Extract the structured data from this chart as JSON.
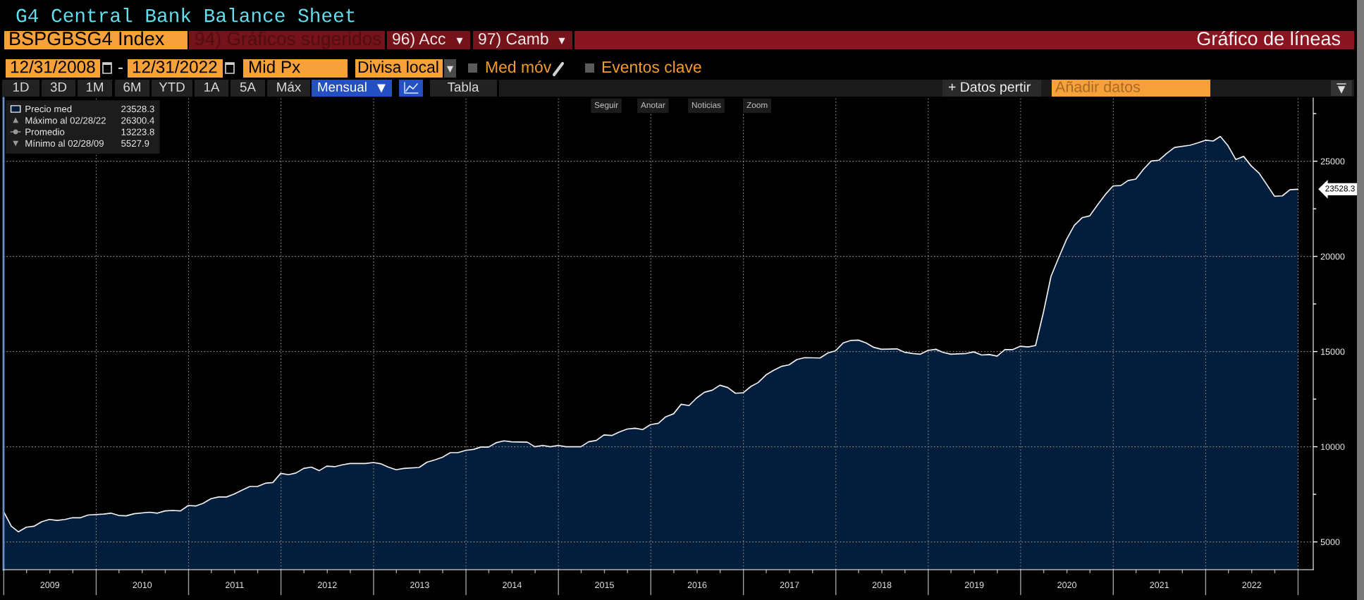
{
  "chart_data": {
    "type": "area",
    "title": "G4 Central Bank Balance Sheet",
    "x": [
      "2008-12-31",
      "2009-01-31",
      "2009-02-28",
      "2009-03-31",
      "2009-04-30",
      "2009-05-31",
      "2009-06-30",
      "2009-07-31",
      "2009-08-31",
      "2009-09-30",
      "2009-10-31",
      "2009-11-30",
      "2010-01-31",
      "2010-02-28",
      "2010-03-31",
      "2010-04-30",
      "2010-05-31",
      "2010-07-31",
      "2010-08-31",
      "2010-09-30",
      "2010-10-31",
      "2010-11-30",
      "2010-12-31",
      "2011-01-31",
      "2011-02-28",
      "2011-03-31",
      "2011-04-30",
      "2011-05-31",
      "2011-06-30",
      "2011-07-31",
      "2011-08-31",
      "2011-09-30",
      "2011-10-31",
      "2011-11-30",
      "2011-12-31",
      "2012-01-31",
      "2012-02-29",
      "2012-03-31",
      "2012-04-30",
      "2012-05-31",
      "2012-06-30",
      "2012-07-31",
      "2012-08-31",
      "2012-09-30",
      "2012-11-30",
      "2012-12-31",
      "2013-01-31",
      "2013-02-28",
      "2013-03-31",
      "2013-04-30",
      "2013-06-30",
      "2013-07-31",
      "2013-08-31",
      "2013-09-30",
      "2013-10-31",
      "2013-11-30",
      "2013-12-31",
      "2014-01-31",
      "2014-02-28",
      "2014-03-31",
      "2014-04-30",
      "2014-05-31",
      "2014-06-30",
      "2014-08-31",
      "2014-09-30",
      "2014-10-31",
      "2014-11-30",
      "2014-12-31",
      "2015-01-31",
      "2015-03-31",
      "2015-04-30",
      "2015-05-31",
      "2015-06-30",
      "2015-07-31",
      "2015-08-31",
      "2015-09-30",
      "2015-10-31",
      "2015-11-30",
      "2015-12-31",
      "2016-01-31",
      "2016-02-29",
      "2016-03-31",
      "2016-04-30",
      "2016-05-31",
      "2016-06-30",
      "2016-07-31",
      "2016-08-31",
      "2016-09-30",
      "2016-10-31",
      "2016-11-30",
      "2016-12-31",
      "2017-01-31",
      "2017-02-28",
      "2017-03-31",
      "2017-04-30",
      "2017-05-31",
      "2017-06-30",
      "2017-07-31",
      "2017-08-31",
      "2017-10-31",
      "2017-11-30",
      "2017-12-31",
      "2018-01-31",
      "2018-02-28",
      "2018-03-31",
      "2018-04-30",
      "2018-05-31",
      "2018-06-30",
      "2018-08-31",
      "2018-09-30",
      "2018-10-31",
      "2018-11-30",
      "2018-12-31",
      "2019-01-31",
      "2019-02-28",
      "2019-03-31",
      "2019-05-31",
      "2019-06-30",
      "2019-07-31",
      "2019-08-31",
      "2019-09-30",
      "2019-10-31",
      "2019-11-30",
      "2019-12-31",
      "2020-01-31",
      "2020-02-29",
      "2020-03-31",
      "2020-04-30",
      "2020-05-31",
      "2020-06-30",
      "2020-07-31",
      "2020-08-31",
      "2020-09-30",
      "2020-10-31",
      "2020-11-30",
      "2020-12-31",
      "2021-01-31",
      "2021-02-28",
      "2021-03-31",
      "2021-04-30",
      "2021-05-31",
      "2021-06-30",
      "2021-07-31",
      "2021-08-31",
      "2021-10-31",
      "2021-11-30",
      "2021-12-31",
      "2022-01-31",
      "2022-02-28",
      "2022-03-31",
      "2022-04-30",
      "2022-05-31",
      "2022-06-30",
      "2022-07-31",
      "2022-08-31",
      "2022-09-30",
      "2022-10-31",
      "2022-11-30",
      "2022-12-31"
    ],
    "series": [
      {
        "name": "Precio med",
        "color": "#031d3c",
        "values": [
          6600,
          5820,
          5527.9,
          5770,
          5820,
          6060,
          6180,
          6130,
          6180,
          6270,
          6270,
          6410,
          6460,
          6510,
          6390,
          6370,
          6480,
          6560,
          6510,
          6630,
          6650,
          6630,
          6910,
          6890,
          7030,
          7270,
          7360,
          7360,
          7510,
          7720,
          7910,
          7910,
          8080,
          8120,
          8600,
          8530,
          8620,
          8860,
          8930,
          8740,
          8980,
          8950,
          9050,
          9120,
          9120,
          9170,
          9100,
          8930,
          8790,
          8860,
          8910,
          9190,
          9310,
          9450,
          9690,
          9690,
          9810,
          9860,
          9980,
          9980,
          10210,
          10310,
          10260,
          10240,
          10000,
          10070,
          10000,
          10070,
          10000,
          10000,
          10260,
          10330,
          10620,
          10590,
          10780,
          10930,
          10970,
          10900,
          11160,
          11230,
          11570,
          11730,
          12230,
          12160,
          12560,
          12860,
          12970,
          13230,
          13110,
          12810,
          12830,
          13170,
          13370,
          13770,
          14010,
          14220,
          14300,
          14580,
          14680,
          14660,
          14920,
          15040,
          15460,
          15580,
          15600,
          15460,
          15220,
          15120,
          15140,
          14960,
          14900,
          14860,
          15060,
          15120,
          14960,
          14860,
          14900,
          14980,
          14820,
          14840,
          14760,
          15100,
          15100,
          15280,
          15240,
          15320,
          17050,
          18950,
          19950,
          20880,
          21630,
          22030,
          22130,
          22710,
          23240,
          23700,
          23720,
          23980,
          24060,
          24570,
          25010,
          25050,
          25410,
          25720,
          25840,
          25960,
          26100,
          26060,
          26300.4,
          25800,
          25090,
          25250,
          24750,
          24370,
          23760,
          23160,
          23180,
          23500,
          23528.3
        ]
      }
    ],
    "xlim": [
      "2008-12-31",
      "2023-03-02"
    ],
    "xticks": [
      {
        "value": "2009-01-01",
        "label": null
      },
      {
        "value": "2009-04-01",
        "label": null
      },
      {
        "value": "2009-07-02",
        "label": "2009"
      },
      {
        "value": "2009-10-01",
        "label": null
      },
      {
        "value": "2010-01-01",
        "label": null
      },
      {
        "value": "2010-04-01",
        "label": null
      },
      {
        "value": "2010-07-02",
        "label": "2010"
      },
      {
        "value": "2010-10-01",
        "label": null
      },
      {
        "value": "2011-01-01",
        "label": null
      },
      {
        "value": "2011-04-01",
        "label": null
      },
      {
        "value": "2011-07-02",
        "label": "2011"
      },
      {
        "value": "2011-10-01",
        "label": null
      },
      {
        "value": "2012-01-01",
        "label": null
      },
      {
        "value": "2012-04-01",
        "label": null
      },
      {
        "value": "2012-07-02",
        "label": "2012"
      },
      {
        "value": "2012-10-01",
        "label": null
      },
      {
        "value": "2013-01-01",
        "label": null
      },
      {
        "value": "2013-04-01",
        "label": null
      },
      {
        "value": "2013-07-02",
        "label": "2013"
      },
      {
        "value": "2013-10-01",
        "label": null
      },
      {
        "value": "2014-01-01",
        "label": null
      },
      {
        "value": "2014-04-01",
        "label": null
      },
      {
        "value": "2014-07-02",
        "label": "2014"
      },
      {
        "value": "2014-10-01",
        "label": null
      },
      {
        "value": "2015-01-01",
        "label": null
      },
      {
        "value": "2015-04-01",
        "label": null
      },
      {
        "value": "2015-07-02",
        "label": "2015"
      },
      {
        "value": "2015-10-01",
        "label": null
      },
      {
        "value": "2016-01-01",
        "label": null
      },
      {
        "value": "2016-04-01",
        "label": null
      },
      {
        "value": "2016-07-02",
        "label": "2016"
      },
      {
        "value": "2016-10-01",
        "label": null
      },
      {
        "value": "2017-01-01",
        "label": null
      },
      {
        "value": "2017-04-01",
        "label": null
      },
      {
        "value": "2017-07-02",
        "label": "2017"
      },
      {
        "value": "2017-10-01",
        "label": null
      },
      {
        "value": "2018-01-01",
        "label": null
      },
      {
        "value": "2018-04-01",
        "label": null
      },
      {
        "value": "2018-07-02",
        "label": "2018"
      },
      {
        "value": "2018-10-01",
        "label": null
      },
      {
        "value": "2019-01-01",
        "label": null
      },
      {
        "value": "2019-04-01",
        "label": null
      },
      {
        "value": "2019-07-02",
        "label": "2019"
      },
      {
        "value": "2019-10-01",
        "label": null
      },
      {
        "value": "2020-01-01",
        "label": null
      },
      {
        "value": "2020-04-01",
        "label": null
      },
      {
        "value": "2020-07-02",
        "label": "2020"
      },
      {
        "value": "2020-10-01",
        "label": null
      },
      {
        "value": "2021-01-01",
        "label": null
      },
      {
        "value": "2021-04-01",
        "label": null
      },
      {
        "value": "2021-07-02",
        "label": "2021"
      },
      {
        "value": "2021-10-01",
        "label": null
      },
      {
        "value": "2022-01-01",
        "label": null
      },
      {
        "value": "2022-04-01",
        "label": null
      },
      {
        "value": "2022-07-02",
        "label": "2022"
      },
      {
        "value": "2022-10-01",
        "label": null
      },
      {
        "value": "2023-01-01",
        "label": null
      }
    ],
    "ylim": [
      3540,
      28320
    ],
    "yticks": [
      5000,
      {
        "value": 7500,
        "label": null
      },
      10000,
      {
        "value": 12500,
        "label": null
      },
      15000,
      {
        "value": 17500,
        "label": null
      },
      20000,
      {
        "value": 22500,
        "label": null
      },
      25000,
      {
        "value": 27500,
        "label": null
      }
    ],
    "grid": true,
    "legend": "top left",
    "annotations": [
      "BSPGBSG4 Index",
      "94) Gráficos sugeridos",
      "96) Acc",
      "97) Camb",
      "Gráfico de líneas",
      "12/31/2008",
      "-",
      "12/31/2022",
      "Mid Px",
      "Divisa local",
      "Med móv",
      "Eventos clave",
      "1D",
      "3D",
      "1M",
      "6M",
      "YTD",
      "1A",
      "5A",
      "Máx",
      "Mensual",
      "Tabla",
      "+ Datos pertir",
      "Añadir datos",
      "Seguir",
      "Anotar",
      "Noticias",
      "Zoom",
      "23528.3",
      "Máximo al 02/28/22",
      "26300.4",
      "Promedio",
      "13223.8",
      "Mínimo al 02/28/09",
      "5527.9",
      "23528.3"
    ]
  }
}
